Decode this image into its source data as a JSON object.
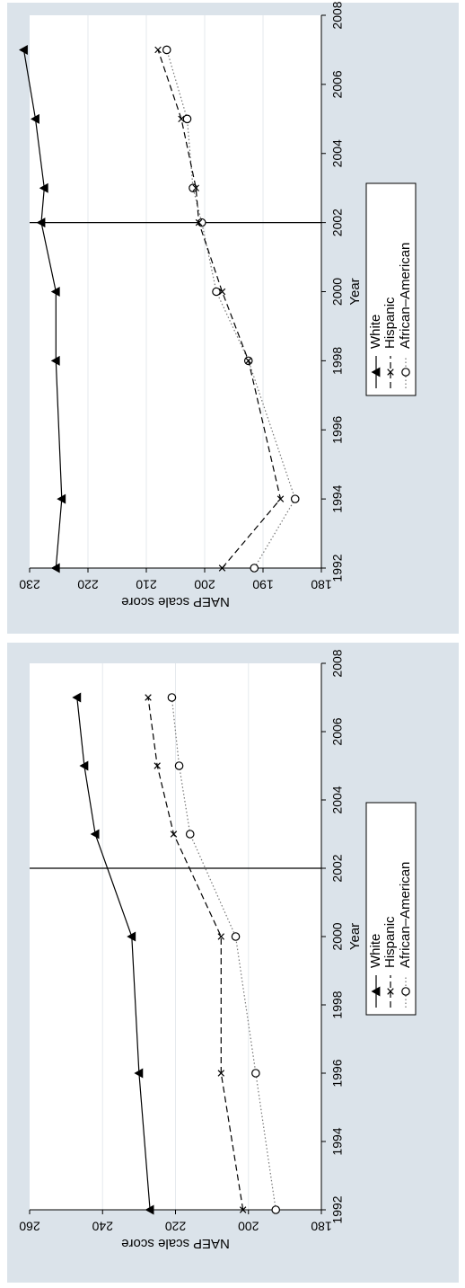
{
  "chart_data": [
    {
      "type": "line",
      "title": "",
      "xlabel": "Year",
      "ylabel": "NAEP scale score",
      "xlim": [
        1992,
        2008
      ],
      "ylim": [
        180,
        230
      ],
      "xticks": [
        "1992",
        "1994",
        "1996",
        "1998",
        "2000",
        "2002",
        "2004",
        "2006",
        "2008"
      ],
      "yticks": [
        "180",
        "190",
        "200",
        "210",
        "220",
        "230"
      ],
      "reference_line_x": 2002,
      "legend": [
        "African–American",
        "Hispanic",
        "White"
      ],
      "series": [
        {
          "name": "African–American",
          "marker": "circle",
          "dash": "dotted",
          "x": [
            1992,
            1994,
            1998,
            2000,
            2002,
            2003,
            2005,
            2007
          ],
          "y": [
            191.5,
            184.5,
            192.5,
            198,
            200.5,
            202,
            203,
            206.5
          ]
        },
        {
          "name": "Hispanic",
          "marker": "x",
          "dash": "dashed",
          "x": [
            1992,
            1994,
            1998,
            2000,
            2002,
            2003,
            2005,
            2007
          ],
          "y": [
            197,
            187,
            192.5,
            197,
            201,
            201.5,
            204,
            208
          ]
        },
        {
          "name": "White",
          "marker": "triangle",
          "dash": "solid",
          "x": [
            1992,
            1994,
            1998,
            2000,
            2002,
            2003,
            2005,
            2007
          ],
          "y": [
            225.5,
            224.5,
            225.5,
            225.5,
            228,
            227.5,
            229,
            231
          ]
        }
      ]
    },
    {
      "type": "line",
      "title": "",
      "xlabel": "Year",
      "ylabel": "NAEP scale score",
      "xlim": [
        1992,
        2008
      ],
      "ylim": [
        180,
        260
      ],
      "xticks": [
        "1992",
        "1994",
        "1996",
        "1998",
        "2000",
        "2002",
        "2004",
        "2006",
        "2008"
      ],
      "yticks": [
        "180",
        "200",
        "220",
        "240",
        "260"
      ],
      "reference_line_x": 2002,
      "legend": [
        "African–American",
        "Hispanic",
        "White"
      ],
      "series": [
        {
          "name": "African–American",
          "marker": "circle",
          "dash": "dotted",
          "x": [
            1992,
            1996,
            2000,
            2003,
            2005,
            2007
          ],
          "y": [
            192.5,
            198,
            203.5,
            216,
            219,
            221
          ]
        },
        {
          "name": "Hispanic",
          "marker": "x",
          "dash": "dashed",
          "x": [
            1992,
            1996,
            2000,
            2003,
            2005,
            2007
          ],
          "y": [
            201.5,
            207.5,
            207.5,
            220.5,
            225,
            227.5
          ]
        },
        {
          "name": "White",
          "marker": "triangle",
          "dash": "solid",
          "x": [
            1992,
            1996,
            2000,
            2003,
            2005,
            2007
          ],
          "y": [
            227,
            230,
            232,
            242,
            245,
            247
          ]
        }
      ]
    }
  ]
}
